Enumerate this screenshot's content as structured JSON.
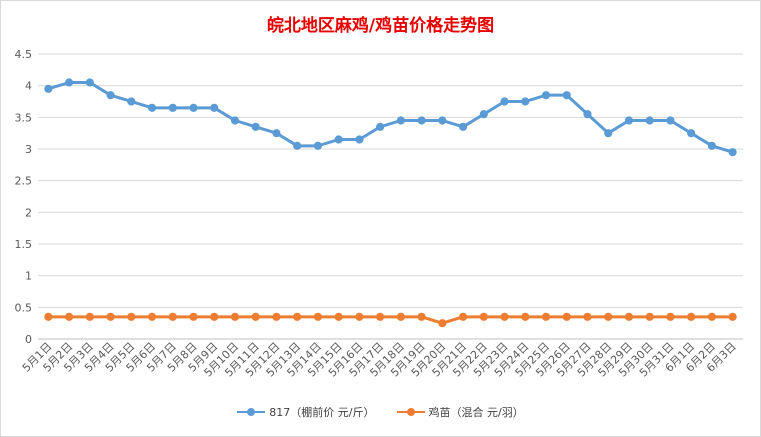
{
  "chart_data": {
    "type": "line",
    "title": "皖北地区麻鸡/鸡苗价格走势图",
    "xlabel": "",
    "ylabel": "",
    "ylim": [
      0,
      4.5
    ],
    "yticks": [
      "0",
      "0.5",
      "1",
      "1.5",
      "2",
      "2.5",
      "3",
      "3.5",
      "4",
      "4.5"
    ],
    "grid": true,
    "legend_position": "bottom",
    "categories": [
      "5月1日",
      "5月2日",
      "5月3日",
      "5月4日",
      "5月5日",
      "5月6日",
      "5月7日",
      "5月8日",
      "5月9日",
      "5月10日",
      "5月11日",
      "5月12日",
      "5月13日",
      "5月14日",
      "5月15日",
      "5月16日",
      "5月17日",
      "5月18日",
      "5月19日",
      "5月20日",
      "5月21日",
      "5月22日",
      "5月23日",
      "5月24日",
      "5月25日",
      "5月26日",
      "5月27日",
      "5月28日",
      "5月29日",
      "5月30日",
      "5月31日",
      "6月1日",
      "6月2日",
      "6月3日"
    ],
    "series": [
      {
        "name": "817（棚前价 元/斤）",
        "color": "#5b9bd5",
        "values": [
          3.95,
          4.05,
          4.05,
          3.85,
          3.75,
          3.65,
          3.65,
          3.65,
          3.65,
          3.45,
          3.35,
          3.25,
          3.05,
          3.05,
          3.15,
          3.15,
          3.35,
          3.45,
          3.45,
          3.45,
          3.35,
          3.55,
          3.75,
          3.75,
          3.85,
          3.85,
          3.55,
          3.25,
          3.45,
          3.45,
          3.45,
          3.25,
          3.05,
          2.95
        ]
      },
      {
        "name": "鸡苗（混合 元/羽）",
        "color": "#ed7d31",
        "values": [
          0.35,
          0.35,
          0.35,
          0.35,
          0.35,
          0.35,
          0.35,
          0.35,
          0.35,
          0.35,
          0.35,
          0.35,
          0.35,
          0.35,
          0.35,
          0.35,
          0.35,
          0.35,
          0.35,
          0.25,
          0.35,
          0.35,
          0.35,
          0.35,
          0.35,
          0.35,
          0.35,
          0.35,
          0.35,
          0.35,
          0.35,
          0.35,
          0.35,
          0.35
        ]
      }
    ]
  }
}
